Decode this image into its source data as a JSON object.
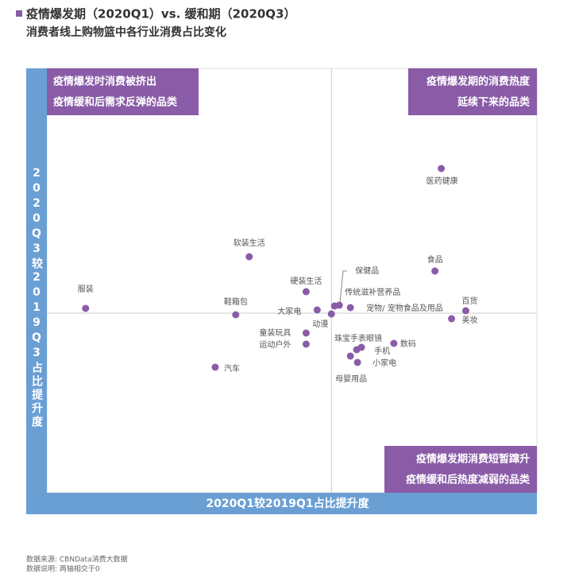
{
  "chart_data": {
    "type": "scatter",
    "title": "疫情爆发期（2020Q1）vs. 缓和期（2020Q3）",
    "subtitle": "消费者线上购物篮中各行业消费占比变化",
    "xlabel": "2020Q1较2019Q1占比提升度",
    "ylabel": "2020Q3较2019Q3占比提升度",
    "xlim": [
      -36,
      26
    ],
    "ylim": [
      -22.6,
      30.8
    ],
    "color": "#8a5ca8",
    "labels": [
      "医药健康",
      "软装生活",
      "食品",
      "服装",
      "硬装生活",
      "保健品",
      "传统滋补营养品",
      "宠物/ 宠物食品及用品",
      "百货",
      "美妆",
      "鞋箱包",
      "大家电",
      "动漫",
      "童装玩具",
      "运动户外",
      "珠宝手表眼镜",
      "手机",
      "数码",
      "小家电",
      "母婴用品",
      "汽车"
    ],
    "x": [
      13.9,
      -10.4,
      13.1,
      -31.1,
      -3.2,
      1.0,
      0.4,
      2.4,
      17.0,
      15.2,
      -12.1,
      -1.8,
      0.0,
      -3.2,
      -3.2,
      3.8,
      3.2,
      7.9,
      3.3,
      2.4,
      -14.7
    ],
    "y": [
      18.2,
      7.1,
      5.3,
      0.6,
      2.7,
      1.0,
      0.9,
      0.7,
      0.3,
      -0.7,
      -0.2,
      0.4,
      -0.1,
      -2.5,
      -3.9,
      -4.3,
      -4.6,
      -3.8,
      -6.2,
      -5.4,
      -6.8
    ],
    "quadrants": [
      [
        "疫情爆发时消费被挤出",
        "疫情缓和后需求反弹的品类"
      ],
      [
        "疫情爆发期的消费热度",
        "延续下来的品类"
      ],
      [
        "疫情爆发期消费短暂蹿升",
        "疫情缓和后热度减弱的品类"
      ]
    ],
    "notes": [
      "数据来源: CBNData消费大数据",
      "数据说明: 两轴相交于0"
    ]
  }
}
